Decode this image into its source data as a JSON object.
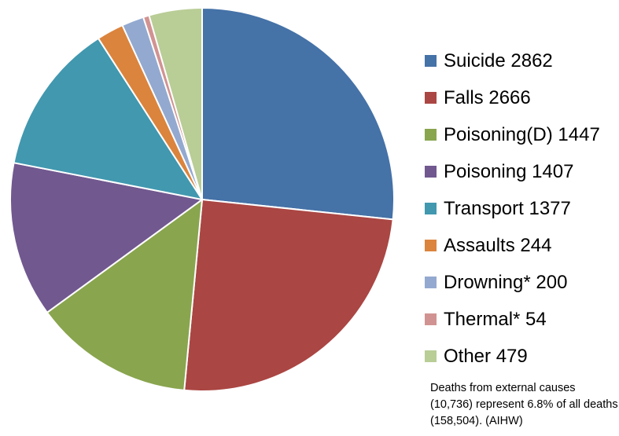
{
  "chart_data": {
    "type": "pie",
    "title": "",
    "start": "12 o'clock",
    "direction": "clockwise",
    "legend_position": "right",
    "slices": [
      {
        "label": "Suicide 2862",
        "value": 2862,
        "color": "#4572A7"
      },
      {
        "label": "Falls 2666",
        "value": 2666,
        "color": "#AA4643"
      },
      {
        "label": "Poisoning(D) 1447",
        "value": 1447,
        "color": "#89A54E"
      },
      {
        "label": "Poisoning 1407",
        "value": 1407,
        "color": "#71588F"
      },
      {
        "label": "Transport 1377",
        "value": 1377,
        "color": "#4198AF"
      },
      {
        "label": "Assaults 244",
        "value": 244,
        "color": "#DB843D"
      },
      {
        "label": "Drowning* 200",
        "value": 200,
        "color": "#93A9CF"
      },
      {
        "label": "Thermal* 54",
        "value": 54,
        "color": "#D19392"
      },
      {
        "label": "Other 479",
        "value": 479,
        "color": "#B9CD96"
      }
    ],
    "annotation": "Deaths from external causes (10,736) represent 6.8% of all deaths (158,504). (AIHW)"
  }
}
